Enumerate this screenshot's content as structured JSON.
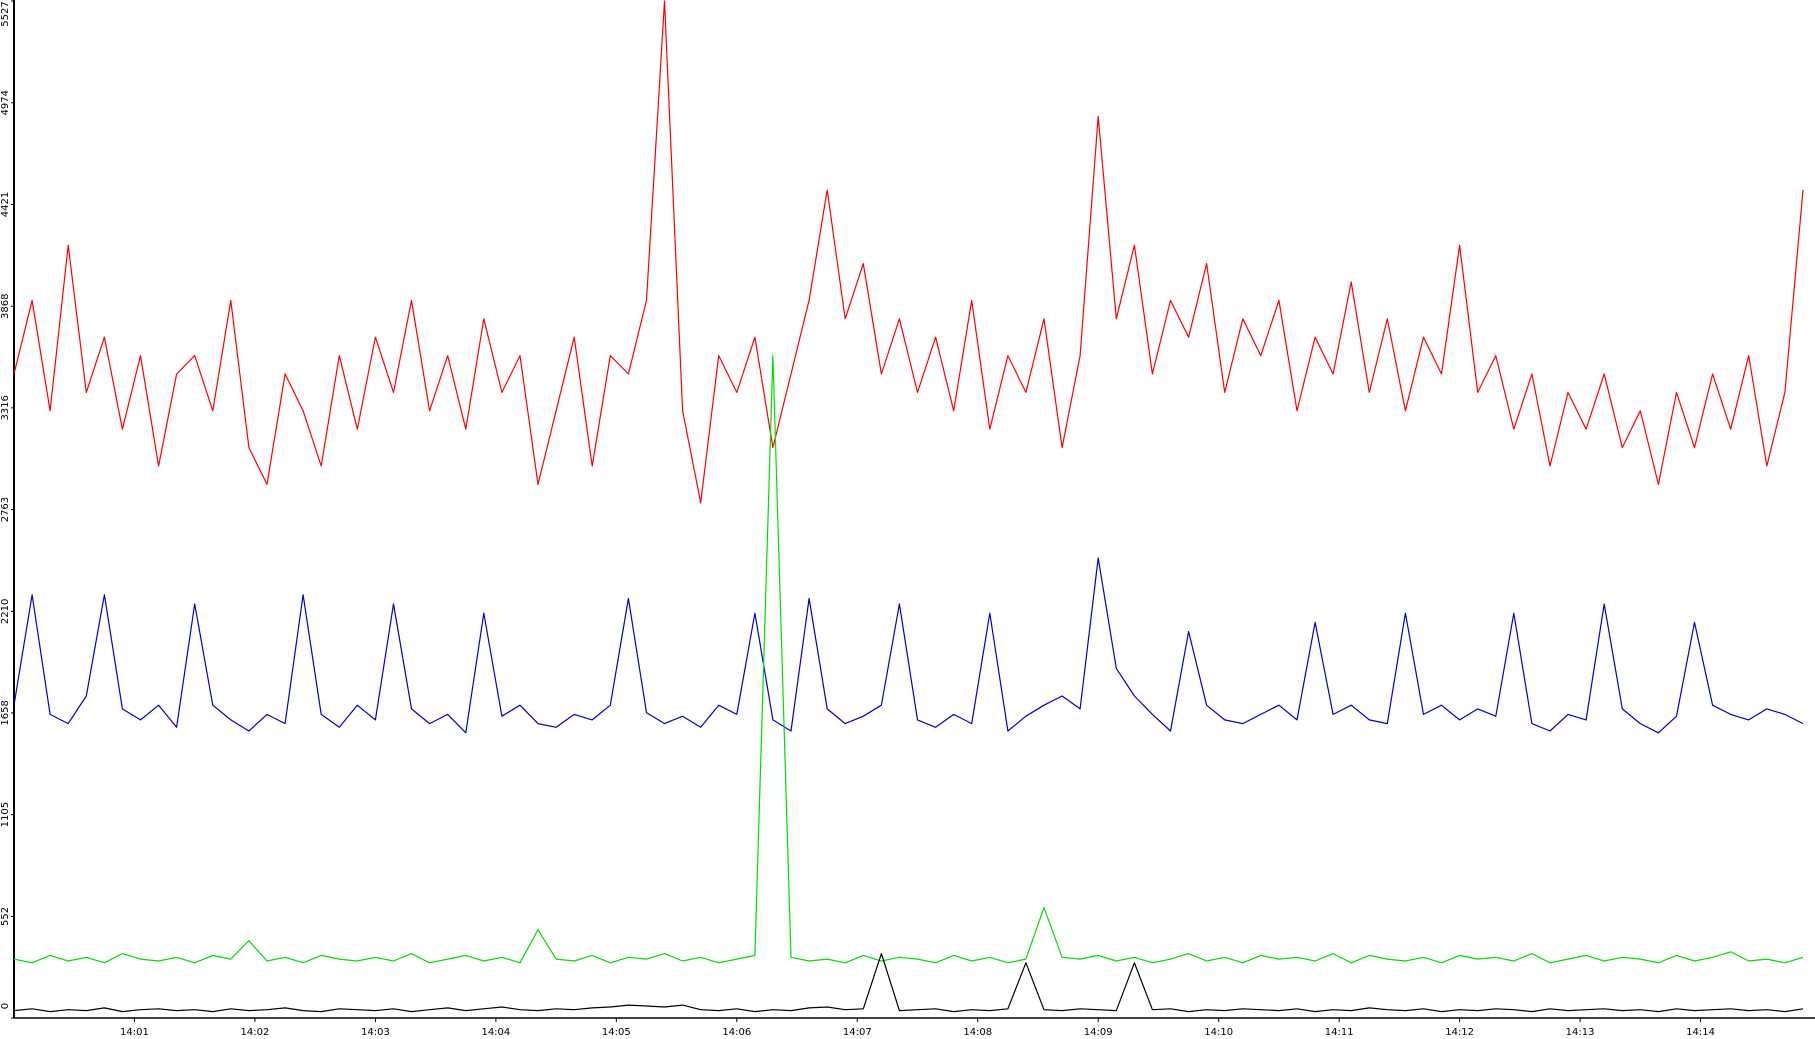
{
  "chart_data": {
    "type": "line",
    "x": [
      0,
      0.15,
      0.3,
      0.45,
      0.6,
      0.75,
      0.9,
      1.05,
      1.2,
      1.35,
      1.5,
      1.65,
      1.8,
      1.95,
      2.1,
      2.25,
      2.4,
      2.55,
      2.7,
      2.85,
      3,
      3.15,
      3.3,
      3.45,
      3.6,
      3.75,
      3.9,
      4.05,
      4.2,
      4.35,
      4.5,
      4.65,
      4.8,
      4.95,
      5.1,
      5.25,
      5.4,
      5.55,
      5.7,
      5.85,
      6,
      6.15,
      6.3,
      6.45,
      6.6,
      6.75,
      6.9,
      7.05,
      7.2,
      7.35,
      7.5,
      7.65,
      7.8,
      7.95,
      8.1,
      8.25,
      8.4,
      8.55,
      8.7,
      8.85,
      9,
      9.15,
      9.3,
      9.45,
      9.6,
      9.75,
      9.9,
      10.05,
      10.2,
      10.35,
      10.5,
      10.65,
      10.8,
      10.95,
      11.1,
      11.25,
      11.4,
      11.55,
      11.7,
      11.85,
      12,
      12.15,
      12.3,
      12.45,
      12.6,
      12.75,
      12.9,
      13.05,
      13.2,
      13.35,
      13.5,
      13.65,
      13.8,
      13.95,
      14.1,
      14.25,
      14.4,
      14.55,
      14.7,
      14.85
    ],
    "series": [
      {
        "color": "#ff0000",
        "values": [
          3500,
          3900,
          3300,
          4200,
          3400,
          3700,
          3200,
          3600,
          3000,
          3500,
          3600,
          3300,
          3900,
          3100,
          2900,
          3500,
          3300,
          3000,
          3600,
          3200,
          3700,
          3400,
          3900,
          3300,
          3600,
          3200,
          3800,
          3400,
          3600,
          2900,
          3300,
          3700,
          3000,
          3600,
          3500,
          3900,
          5527,
          3300,
          2800,
          3600,
          3400,
          3700,
          3100,
          3500,
          3900,
          4500,
          3800,
          4100,
          3500,
          3800,
          3400,
          3700,
          3300,
          3900,
          3200,
          3600,
          3400,
          3800,
          3100,
          3600,
          4900,
          3800,
          4200,
          3500,
          3900,
          3700,
          4100,
          3400,
          3800,
          3600,
          3900,
          3300,
          3700,
          3500,
          4000,
          3400,
          3800,
          3300,
          3700,
          3500,
          4200,
          3400,
          3600,
          3200,
          3500,
          3000,
          3400,
          3200,
          3500,
          3100,
          3300,
          2900,
          3400,
          3100,
          3500,
          3200,
          3600,
          3000,
          3400,
          4500
        ]
      },
      {
        "color": "#0000cc",
        "values": [
          1700,
          2300,
          1650,
          1600,
          1750,
          2300,
          1680,
          1620,
          1700,
          1580,
          2250,
          1700,
          1620,
          1560,
          1650,
          1600,
          2300,
          1650,
          1580,
          1700,
          1620,
          2250,
          1680,
          1600,
          1650,
          1550,
          2200,
          1640,
          1700,
          1600,
          1580,
          1650,
          1620,
          1700,
          2280,
          1660,
          1600,
          1640,
          1580,
          1700,
          1650,
          2200,
          1620,
          1560,
          2280,
          1680,
          1600,
          1640,
          1700,
          2250,
          1620,
          1580,
          1650,
          1600,
          2200,
          1560,
          1640,
          1700,
          1750,
          1680,
          2500,
          1900,
          1750,
          1650,
          1560,
          2100,
          1700,
          1620,
          1600,
          1650,
          1700,
          1620,
          2150,
          1650,
          1700,
          1620,
          1600,
          2200,
          1650,
          1700,
          1620,
          1680,
          1640,
          2200,
          1600,
          1560,
          1650,
          1620,
          2250,
          1680,
          1600,
          1550,
          1640,
          2150,
          1700,
          1650,
          1620,
          1680,
          1650,
          1600
        ]
      },
      {
        "color": "#00dd00",
        "values": [
          320,
          300,
          340,
          310,
          330,
          300,
          350,
          320,
          310,
          330,
          300,
          340,
          320,
          420,
          310,
          330,
          300,
          340,
          320,
          310,
          330,
          310,
          350,
          300,
          320,
          340,
          310,
          330,
          300,
          480,
          320,
          310,
          340,
          300,
          330,
          320,
          350,
          310,
          330,
          300,
          320,
          340,
          3600,
          330,
          310,
          320,
          300,
          340,
          310,
          330,
          320,
          300,
          340,
          310,
          330,
          300,
          320,
          600,
          330,
          320,
          340,
          310,
          330,
          300,
          320,
          350,
          310,
          330,
          300,
          340,
          320,
          330,
          310,
          350,
          300,
          340,
          320,
          310,
          330,
          300,
          340,
          320,
          330,
          310,
          350,
          300,
          320,
          340,
          310,
          330,
          320,
          300,
          340,
          310,
          330,
          360,
          310,
          320,
          300,
          330
        ]
      },
      {
        "color": "#000000",
        "values": [
          40,
          50,
          35,
          45,
          40,
          55,
          35,
          45,
          50,
          40,
          45,
          35,
          50,
          40,
          45,
          55,
          40,
          35,
          50,
          45,
          40,
          50,
          35,
          45,
          55,
          40,
          50,
          60,
          45,
          40,
          50,
          45,
          55,
          60,
          70,
          65,
          60,
          70,
          45,
          40,
          50,
          35,
          45,
          40,
          55,
          60,
          45,
          50,
          350,
          40,
          45,
          50,
          35,
          45,
          40,
          50,
          300,
          45,
          40,
          50,
          45,
          40,
          300,
          45,
          50,
          35,
          45,
          40,
          50,
          45,
          40,
          50,
          35,
          45,
          40,
          55,
          45,
          40,
          50,
          35,
          45,
          40,
          50,
          45,
          35,
          50,
          40,
          45,
          50,
          40,
          45,
          35,
          50,
          40,
          45,
          50,
          40,
          45,
          35,
          50
        ]
      }
    ],
    "xlim": [
      0,
      14.95
    ],
    "xticks": [
      {
        "value": 1,
        "label": "14:01"
      },
      {
        "value": 2,
        "label": "14:02"
      },
      {
        "value": 3,
        "label": "14:03"
      },
      {
        "value": 4,
        "label": "14:04"
      },
      {
        "value": 5,
        "label": "14:05"
      },
      {
        "value": 6,
        "label": "14:06"
      },
      {
        "value": 7,
        "label": "14:07"
      },
      {
        "value": 8,
        "label": "14:08"
      },
      {
        "value": 9,
        "label": "14:09"
      },
      {
        "value": 10,
        "label": "14:10"
      },
      {
        "value": 11,
        "label": "14:11"
      },
      {
        "value": 12,
        "label": "14:12"
      },
      {
        "value": 13,
        "label": "14:13"
      },
      {
        "value": 14,
        "label": "14:14"
      }
    ],
    "ylim": [
      0,
      5527
    ],
    "yticks": [
      0,
      552,
      1105,
      1658,
      2210,
      2763,
      3316,
      3868,
      4421,
      4974,
      5527
    ]
  }
}
